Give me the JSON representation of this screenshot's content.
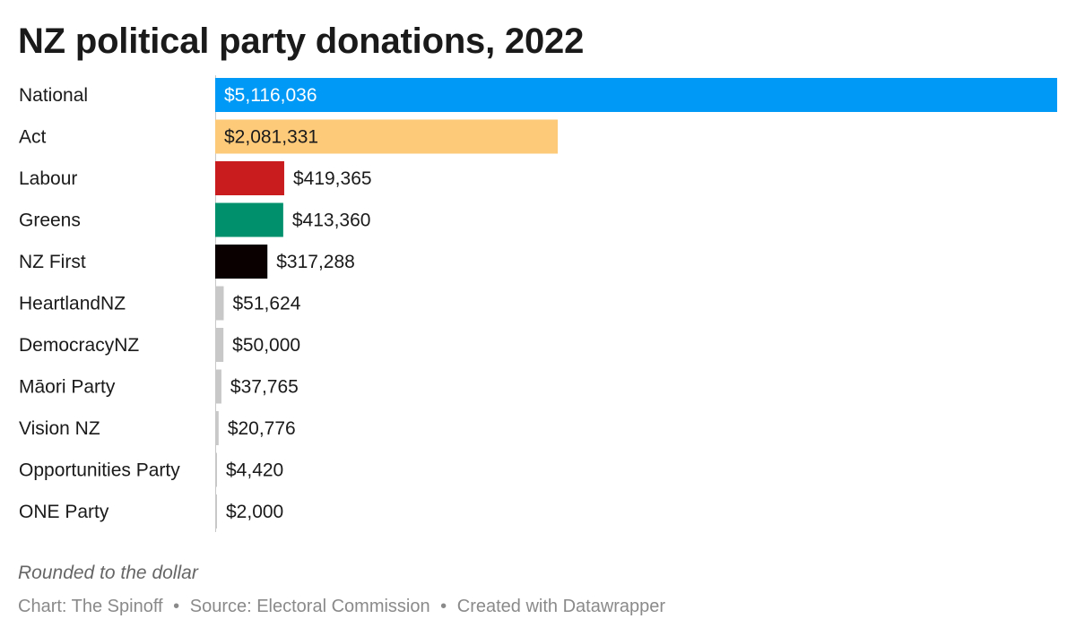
{
  "title": "NZ political party donations, 2022",
  "footnote": "Rounded to the dollar",
  "credits": {
    "chart": "Chart: The Spinoff",
    "source": "Source: Electoral Commission",
    "tool": "Created with Datawrapper",
    "separator": "•"
  },
  "chart_data": {
    "type": "bar",
    "orientation": "horizontal",
    "categories": [
      "National",
      "Act",
      "Labour",
      "Greens",
      "NZ First",
      "HeartlandNZ",
      "DemocracyNZ",
      "Māori Party",
      "Vision NZ",
      "Opportunities Party",
      "ONE Party"
    ],
    "values": [
      5116036,
      2081331,
      419365,
      413360,
      317288,
      51624,
      50000,
      37765,
      20776,
      4420,
      2000
    ],
    "value_labels": [
      "$5,116,036",
      "$2,081,331",
      "$419,365",
      "$413,360",
      "$317,288",
      "$51,624",
      "$50,000",
      "$37,765",
      "$20,776",
      "$4,420",
      "$2,000"
    ],
    "colors": [
      "#0099f5",
      "#fdca7a",
      "#c91c1f",
      "#00906c",
      "#0a0000",
      "#c8c8c8",
      "#c8c8c8",
      "#c8c8c8",
      "#c8c8c8",
      "#c8c8c8",
      "#c8c8c8"
    ],
    "label_inside_color": "#ffffff",
    "label_inside_dark_color": "#1a1a1a",
    "label_outside_color": "#1a1a1a",
    "axis_line_color": "#c8c8c8",
    "xlim": [
      0,
      5116036
    ],
    "grid": false,
    "xlabel": "",
    "ylabel": ""
  }
}
